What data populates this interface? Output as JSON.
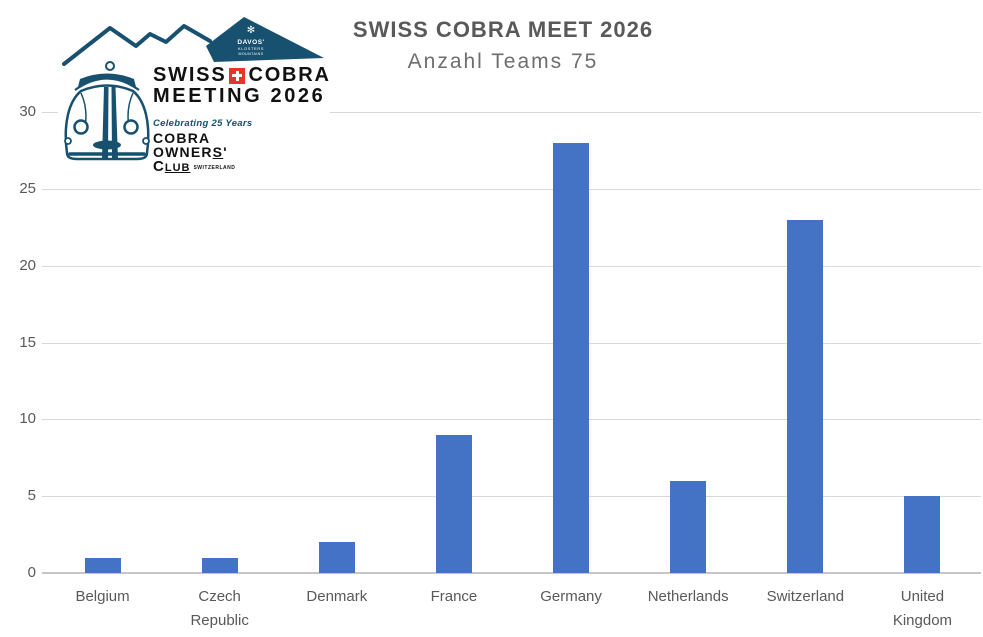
{
  "chart_data": {
    "type": "bar",
    "title": "SWISS COBRA MEET 2026",
    "subtitle": "Anzahl Teams 75",
    "categories": [
      "Belgium",
      "Czech Republic",
      "Denmark",
      "France",
      "Germany",
      "Netherlands",
      "Switzerland",
      "United Kingdom"
    ],
    "values": [
      1,
      1,
      2,
      9,
      28,
      6,
      23,
      5
    ],
    "y_ticks": [
      0,
      5,
      10,
      15,
      20,
      25,
      30
    ],
    "ylim": [
      0,
      30
    ],
    "grid": true,
    "legend": false,
    "bar_color": "#4472C4",
    "gridline_color": "#d9d9d9",
    "axis_label_color": "#595959",
    "title_color": "#595959"
  },
  "logo": {
    "mountain_badge": {
      "star_icon": "✻",
      "line1": "DAVOS'",
      "line2": "KLOSTERS",
      "line3": "MOUNTAINS"
    },
    "title_left": "SWISS",
    "title_right": "COBRA",
    "title_line2": "MEETING 2026",
    "tagline": "Celebrating 25 Years",
    "club_line1": "COBRA",
    "club_line2_main": "OWNER",
    "club_line2_s": "S",
    "club_line2_apos": "'",
    "club_line3_c": "C",
    "club_line3_lub": "LUB",
    "club_line3_country": "SWITZERLAND",
    "colors": {
      "teal": "#17516f",
      "cross_red": "#e8342c"
    }
  }
}
